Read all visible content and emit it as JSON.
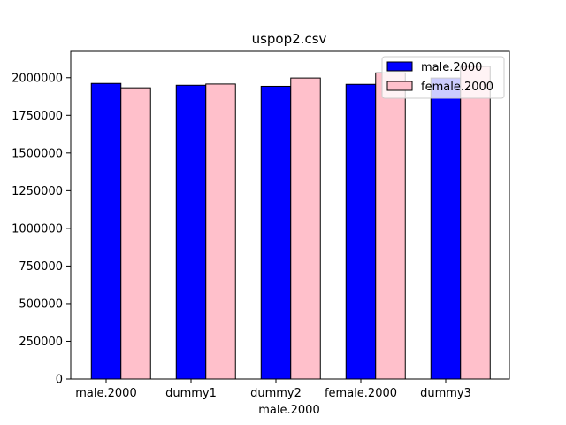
{
  "chart_data": {
    "type": "bar",
    "title": "uspop2.csv",
    "xlabel": "male.2000",
    "ylabel": "",
    "categories": [
      "male.2000",
      "dummy1",
      "dummy2",
      "female.2000",
      "dummy3"
    ],
    "series": [
      {
        "name": "male.2000",
        "color": "#0000ff",
        "values": [
          1962000,
          1950000,
          1943000,
          1956000,
          1998000
        ]
      },
      {
        "name": "female.2000",
        "color": "#ffc0cb",
        "values": [
          1933000,
          1958000,
          1998000,
          2032000,
          2075000
        ]
      }
    ],
    "ylim": [
      0,
      2175000
    ],
    "yticks": [
      0,
      250000,
      500000,
      750000,
      1000000,
      1250000,
      1500000,
      1750000,
      2000000
    ],
    "grid": false,
    "legend_position": "top-right"
  }
}
